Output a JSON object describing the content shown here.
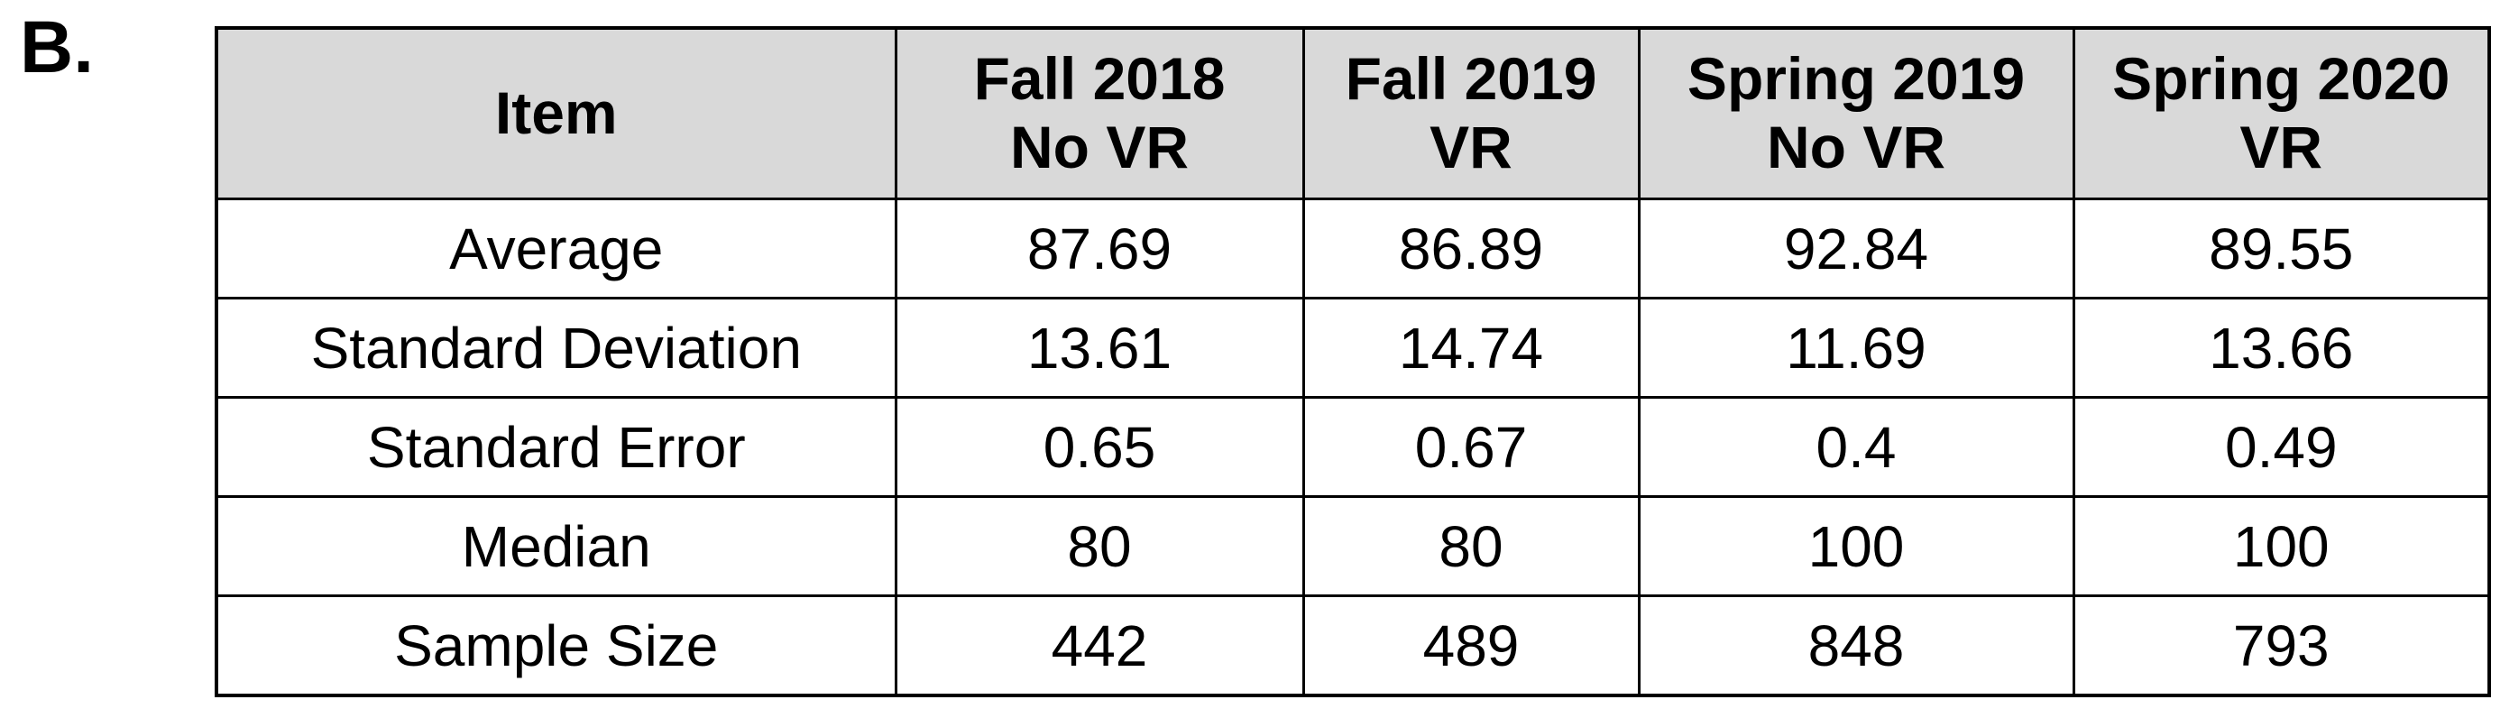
{
  "panel_label": "B.",
  "chart_data": {
    "type": "table",
    "columns": [
      {
        "lines": [
          "Item"
        ]
      },
      {
        "lines": [
          "Fall 2018",
          "No VR"
        ]
      },
      {
        "lines": [
          "Fall 2019",
          "VR"
        ]
      },
      {
        "lines": [
          "Spring 2019",
          "No VR"
        ]
      },
      {
        "lines": [
          "Spring 2020",
          "VR"
        ]
      }
    ],
    "rows": [
      {
        "item": "Average",
        "values": [
          "87.69",
          "86.89",
          "92.84",
          "89.55"
        ]
      },
      {
        "item": "Standard Deviation",
        "values": [
          "13.61",
          "14.74",
          "11.69",
          "13.66"
        ]
      },
      {
        "item": "Standard Error",
        "values": [
          "0.65",
          "0.67",
          "0.4",
          "0.49"
        ]
      },
      {
        "item": "Median",
        "values": [
          "80",
          "80",
          "100",
          "100"
        ]
      },
      {
        "item": "Sample Size",
        "values": [
          "442",
          "489",
          "848",
          "793"
        ]
      }
    ],
    "header_background": "#d9d9d9"
  }
}
